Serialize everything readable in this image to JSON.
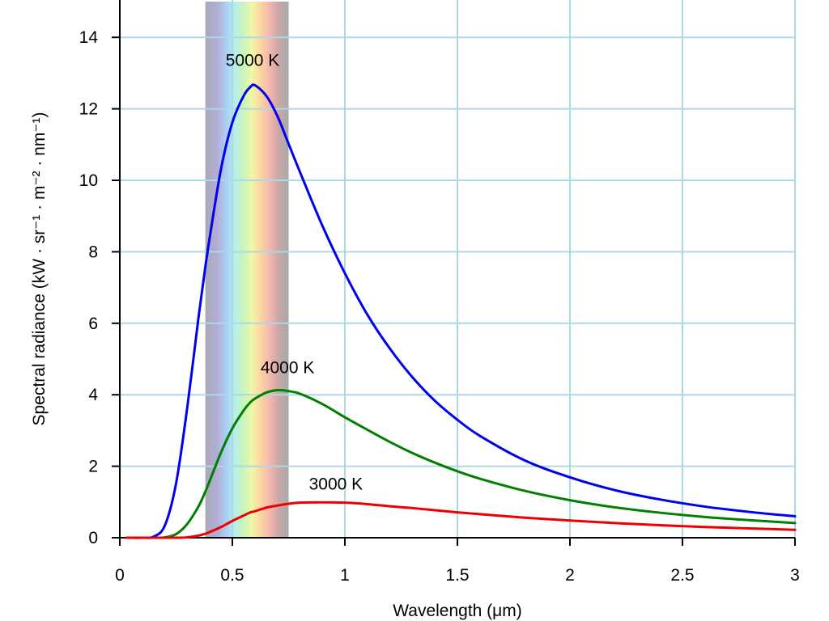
{
  "chart_data": {
    "type": "line",
    "title": "",
    "xlabel": "Wavelength (μm)",
    "ylabel": "Spectral radiance (kW · sr⁻¹ · m⁻² · nm⁻¹)",
    "xlim": [
      0,
      3
    ],
    "ylim": [
      0,
      15
    ],
    "x_ticks": [
      0,
      0.5,
      1,
      1.5,
      2,
      2.5,
      3
    ],
    "x_tick_labels": [
      "0",
      "0.5",
      "1",
      "1.5",
      "2",
      "2.5",
      "3"
    ],
    "y_ticks": [
      0,
      2,
      4,
      6,
      8,
      10,
      12,
      14
    ],
    "y_tick_labels": [
      "0",
      "2",
      "4",
      "6",
      "8",
      "10",
      "12",
      "14"
    ],
    "grid": true,
    "visible_spectrum_band": [
      0.38,
      0.75
    ],
    "x": [
      0.03,
      0.1,
      0.15,
      0.2,
      0.25,
      0.3,
      0.35,
      0.38,
      0.4,
      0.45,
      0.5,
      0.55,
      0.58,
      0.6,
      0.65,
      0.7,
      0.75,
      0.8,
      0.9,
      1.0,
      1.1,
      1.2,
      1.3,
      1.4,
      1.5,
      1.6,
      1.8,
      2.0,
      2.2,
      2.4,
      2.6,
      2.8,
      3.0
    ],
    "series": [
      {
        "label": "5000 K",
        "color": "#0000ee",
        "values": [
          0,
          0,
          0.03,
          0.34,
          1.52,
          3.66,
          6.18,
          7.58,
          8.42,
          10.33,
          11.62,
          12.36,
          12.61,
          12.66,
          12.37,
          11.8,
          11.02,
          10.24,
          8.73,
          7.4,
          6.24,
          5.29,
          4.49,
          3.83,
          3.3,
          2.85,
          2.16,
          1.69,
          1.33,
          1.07,
          0.87,
          0.72,
          0.6
        ]
      },
      {
        "label": "4000 K",
        "color": "#008000",
        "values": [
          0,
          0,
          0,
          0.01,
          0.1,
          0.39,
          0.88,
          1.29,
          1.6,
          2.39,
          3.06,
          3.56,
          3.79,
          3.89,
          4.06,
          4.13,
          4.1,
          4.03,
          3.74,
          3.37,
          3.02,
          2.68,
          2.37,
          2.1,
          1.86,
          1.65,
          1.31,
          1.05,
          0.85,
          0.7,
          0.58,
          0.49,
          0.41
        ]
      },
      {
        "label": "3000 K",
        "color": "#ee0000",
        "values": [
          0,
          0,
          0,
          0,
          0,
          0.01,
          0.06,
          0.11,
          0.16,
          0.3,
          0.47,
          0.62,
          0.71,
          0.74,
          0.84,
          0.9,
          0.95,
          0.98,
          0.99,
          0.98,
          0.94,
          0.88,
          0.83,
          0.77,
          0.71,
          0.66,
          0.56,
          0.48,
          0.41,
          0.35,
          0.3,
          0.26,
          0.22
        ]
      }
    ],
    "series_label_anchor_x": [
      0.59,
      0.745,
      0.96
    ],
    "series_label_anchor_y": [
      13.2,
      4.6,
      1.35
    ]
  }
}
